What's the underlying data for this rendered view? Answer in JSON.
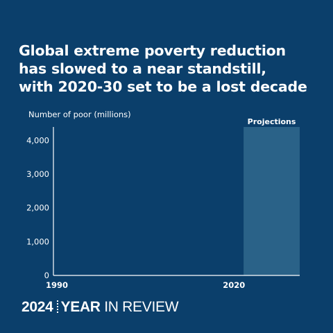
{
  "headline": {
    "line1": "Global extreme poverty reduction",
    "line2": "has slowed to a near standstill,",
    "line3": "with 2020-30 set to be a lost decade"
  },
  "chart_data": {
    "type": "bar",
    "title": "",
    "ylabel": "Number of poor (millions)",
    "xlabel": "",
    "ylim": [
      0,
      4400
    ],
    "yticks": [
      0,
      1000,
      2000,
      3000,
      4000
    ],
    "ytick_labels": [
      "0",
      "1,000",
      "2,000",
      "3,000",
      "4,000"
    ],
    "x_range": [
      1990,
      2030
    ],
    "xtick_labels": [
      "1990",
      "2020"
    ],
    "xticks": [
      1990,
      2020
    ],
    "series": [],
    "projection_region": {
      "label": "Projections",
      "x_start": 2021,
      "x_end": 2030
    },
    "grid": false,
    "legend": "none"
  },
  "footer": {
    "year": "2024",
    "word1": "YEAR",
    "rest": "IN REVIEW"
  },
  "colors": {
    "background": "#0b3f6b",
    "projection_band": "#2a6288",
    "text": "#ffffff"
  }
}
